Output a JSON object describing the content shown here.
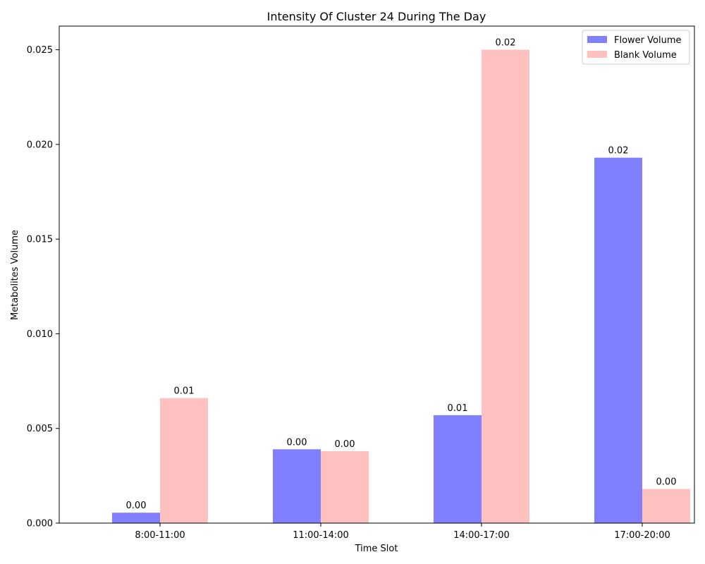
{
  "chart_data": {
    "type": "bar",
    "title": "Intensity Of Cluster 24 During The Day",
    "xlabel": "Time Slot",
    "ylabel": "Metabolites Volume",
    "categories": [
      "8:00-11:00",
      "11:00-14:00",
      "14:00-17:00",
      "17:00-20:00"
    ],
    "series": [
      {
        "name": "Flower Volume",
        "color": "#8080ff",
        "values": [
          0.00055,
          0.0039,
          0.0057,
          0.0193
        ],
        "labels": [
          "0.00",
          "0.00",
          "0.01",
          "0.02"
        ]
      },
      {
        "name": "Blank Volume",
        "color": "#ffc0c0",
        "values": [
          0.0066,
          0.0038,
          0.025,
          0.0018
        ],
        "labels": [
          "0.01",
          "0.00",
          "0.02",
          "0.00"
        ]
      }
    ],
    "yticks": [
      "0.000",
      "0.005",
      "0.010",
      "0.015",
      "0.020",
      "0.025"
    ],
    "ylim": [
      0,
      0.02625
    ],
    "grid": false,
    "legend_position": "top-right"
  }
}
